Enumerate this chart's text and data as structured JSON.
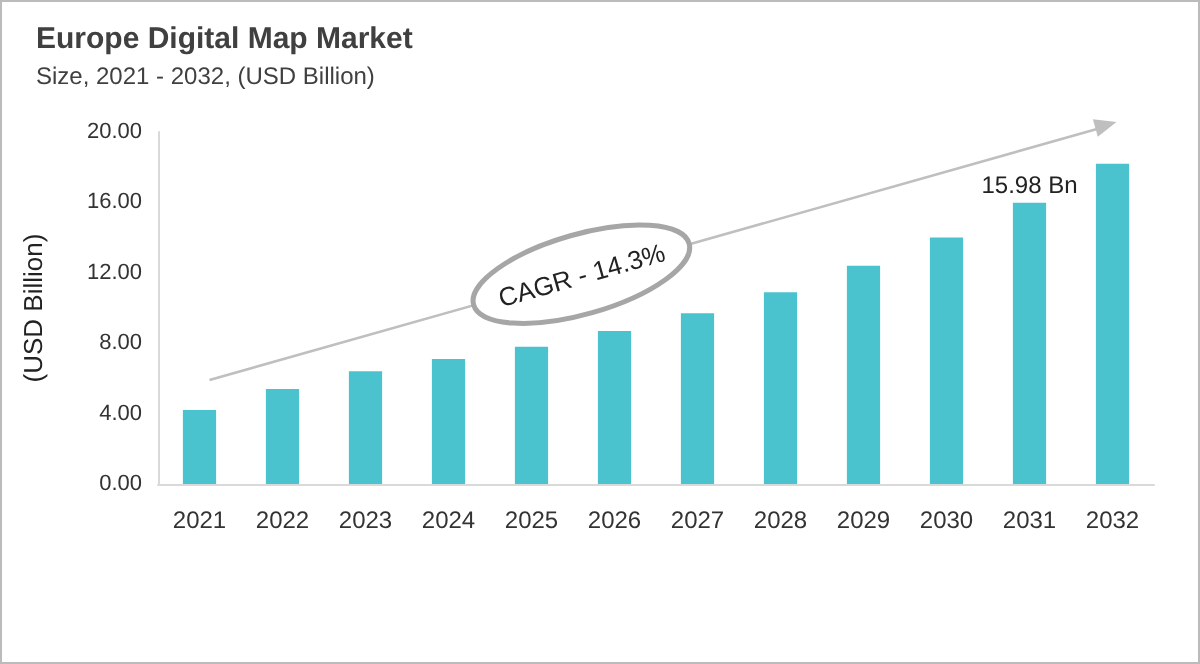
{
  "chart_data": {
    "type": "bar",
    "title": "Europe Digital Map Market",
    "subtitle": "Size, 2021 - 2032, (USD Billion)",
    "ylabel": "(USD Billion)",
    "categories": [
      "2021",
      "2022",
      "2023",
      "2024",
      "2025",
      "2026",
      "2027",
      "2028",
      "2029",
      "2030",
      "2031",
      "2032"
    ],
    "values": [
      4.2,
      5.4,
      6.4,
      7.1,
      7.8,
      8.7,
      9.7,
      10.9,
      12.4,
      14.0,
      15.98,
      18.2
    ],
    "color": "#4bc3cf",
    "ylim": [
      0,
      20
    ],
    "yticks": [
      {
        "value": 0,
        "label": "0.00"
      },
      {
        "value": 4,
        "label": "4.00"
      },
      {
        "value": 8,
        "label": "8.00"
      },
      {
        "value": 12,
        "label": "12.00"
      },
      {
        "value": 16,
        "label": "16.00"
      },
      {
        "value": 20,
        "label": "20.00"
      }
    ],
    "grid": false,
    "annotations": [
      "CAGR - 14.3%",
      {
        "text": "15.98 Bn",
        "x": "2031",
        "y": 15.98
      }
    ]
  }
}
